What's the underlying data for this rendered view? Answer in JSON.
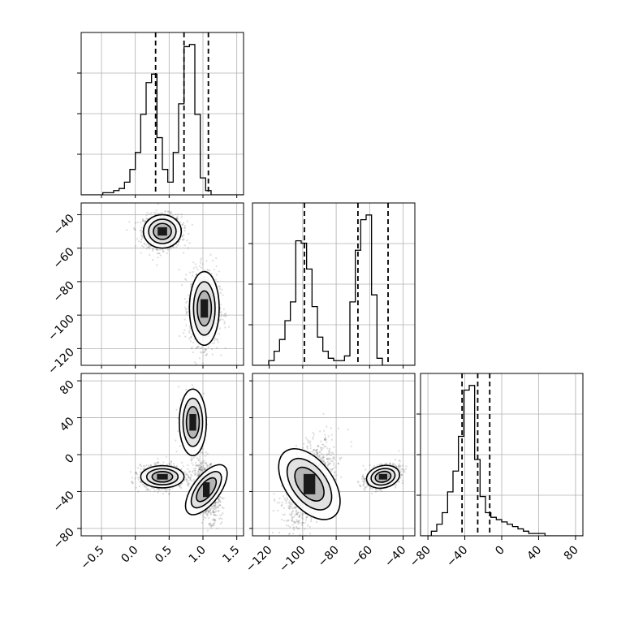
{
  "chart_data": {
    "type": "corner",
    "grid": true,
    "legend": "none",
    "colors": {
      "line": "#000000",
      "points": "#444444",
      "grid": "#b0b0b0",
      "background": "#ffffff"
    },
    "params": [
      {
        "range": [
          -0.8,
          1.6
        ],
        "ticks": [
          -0.5,
          0.0,
          0.5,
          1.0,
          1.5
        ],
        "tick_labels": [
          "−0.5",
          "0.0",
          "0.5",
          "1.0",
          "1.5"
        ],
        "quantiles": [
          0.3,
          0.72,
          1.08
        ]
      },
      {
        "range": [
          -130,
          -33
        ],
        "ticks": [
          -120,
          -100,
          -80,
          -60,
          -40
        ],
        "tick_labels": [
          "−120",
          "−100",
          "−80",
          "−60",
          "−40"
        ],
        "quantiles": [
          -99,
          -67,
          -49
        ]
      },
      {
        "range": [
          -88,
          88
        ],
        "ticks": [
          -80,
          -40,
          0,
          40,
          80
        ],
        "tick_labels": [
          "−80",
          "−40",
          "0",
          "40",
          "80"
        ],
        "quantiles": [
          -43,
          -26,
          -13
        ]
      }
    ],
    "histograms": [
      {
        "param": 0,
        "edges": [
          -0.8,
          1.6
        ],
        "counts": [
          0,
          0,
          0,
          0,
          1,
          1,
          2,
          3,
          6,
          12,
          20,
          38,
          53,
          57,
          27,
          12,
          6,
          20,
          43,
          70,
          71,
          38,
          8,
          2,
          0,
          0,
          0,
          0,
          0,
          0
        ]
      },
      {
        "param": 1,
        "edges": [
          -130,
          -33
        ],
        "counts": [
          0,
          0,
          0,
          2,
          6,
          11,
          19,
          27,
          53,
          52,
          41,
          25,
          12,
          6,
          3,
          2,
          2,
          4,
          27,
          49,
          62,
          64,
          30,
          3,
          0,
          0,
          0,
          0,
          0,
          0
        ]
      },
      {
        "param": 2,
        "edges": [
          -88,
          88
        ],
        "counts": [
          0,
          0,
          2,
          5,
          10,
          19,
          28,
          43,
          63,
          65,
          33,
          17,
          10,
          8,
          7,
          6,
          5,
          4,
          3,
          2,
          1,
          1,
          1,
          0,
          0,
          0,
          0,
          0,
          0,
          0
        ]
      }
    ],
    "scatter_panels": [
      {
        "x_param": 0,
        "y_param": 1,
        "modes": [
          {
            "x": 0.4,
            "y": -50,
            "sx": 0.14,
            "sy": 5,
            "rho": 0.0,
            "w": 0.5
          },
          {
            "x": 1.02,
            "y": -96,
            "sx": 0.11,
            "sy": 11,
            "rho": 0.0,
            "w": 0.5
          }
        ]
      },
      {
        "x_param": 0,
        "y_param": 2,
        "modes": [
          {
            "x": 0.4,
            "y": -24,
            "sx": 0.16,
            "sy": 6,
            "rho": 0.0,
            "w": 0.55
          },
          {
            "x": 1.05,
            "y": -38,
            "sx": 0.1,
            "sy": 16,
            "rho": -0.4,
            "w": 0.35
          },
          {
            "x": 0.85,
            "y": 35,
            "sx": 0.1,
            "sy": 18,
            "rho": 0.0,
            "w": 0.1
          }
        ]
      },
      {
        "x_param": 1,
        "y_param": 2,
        "modes": [
          {
            "x": -96,
            "y": -32,
            "sx": 7,
            "sy": 22,
            "rho": 0.5,
            "w": 0.55
          },
          {
            "x": -52,
            "y": -24,
            "sx": 5,
            "sy": 6,
            "rho": 0.4,
            "w": 0.45
          }
        ]
      }
    ],
    "contour_levels": [
      0.4,
      0.7,
      0.9
    ],
    "points_per_panel": 2200
  }
}
